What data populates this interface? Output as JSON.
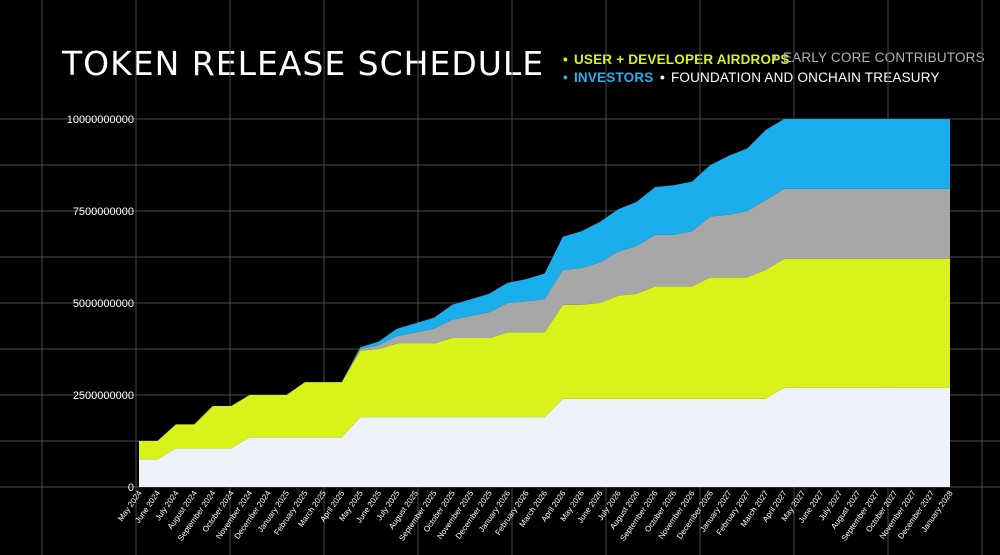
{
  "colors": {
    "background": "#000000",
    "grid": "#4a4a4a",
    "foundation": "#eef3fa",
    "user_developer_airdrops": "#d9f21a",
    "early_core_contributors": "#a7a7a7",
    "investors": "#1aaeed"
  },
  "chart_data": {
    "type": "area",
    "stacked": true,
    "title": "TOKEN RELEASE SCHEDULE",
    "xlabel": "",
    "ylabel": "",
    "ylim": [
      0,
      10000000000
    ],
    "y_ticks": [
      "0",
      "2500000000",
      "5000000000",
      "7500000000",
      "10000000000"
    ],
    "grid": true,
    "legend_position": "top-right",
    "categories": [
      "May 2024",
      "June 2024",
      "July 2024",
      "August 2024",
      "September 2024",
      "October 2024",
      "November 2024",
      "December 2024",
      "January 2025",
      "February 2025",
      "March 2025",
      "April 2025",
      "May 2025",
      "June 2025",
      "July 2025",
      "August 2025",
      "September 2025",
      "October 2025",
      "November 2025",
      "December 2025",
      "January 2026",
      "February 2026",
      "March 2026",
      "April 2026",
      "May 2026",
      "June 2026",
      "July 2026",
      "August 2026",
      "September 2026",
      "October 2026",
      "November 2026",
      "December 2026",
      "January 2027",
      "February 2027",
      "March 2027",
      "April 2027",
      "May 2027",
      "June 2027",
      "July 2027",
      "August 2027",
      "September 2027",
      "October 2027",
      "November 2027",
      "December 2027",
      "January 2028"
    ],
    "series": [
      {
        "name": "FOUNDATION AND  ONCHAIN TREASURY",
        "values": [
          750000000,
          750000000,
          1050000000,
          1050000000,
          1050000000,
          1050000000,
          1350000000,
          1350000000,
          1350000000,
          1350000000,
          1350000000,
          1350000000,
          1900000000,
          1900000000,
          1900000000,
          1900000000,
          1900000000,
          1900000000,
          1900000000,
          1900000000,
          1900000000,
          1900000000,
          1900000000,
          2400000000,
          2400000000,
          2400000000,
          2400000000,
          2400000000,
          2400000000,
          2400000000,
          2400000000,
          2400000000,
          2400000000,
          2400000000,
          2400000000,
          2700000000,
          2700000000,
          2700000000,
          2700000000,
          2700000000,
          2700000000,
          2700000000,
          2700000000,
          2700000000,
          2700000000
        ]
      },
      {
        "name": "USER + DEVELOPER AIRDROPS",
        "values": [
          500000000,
          500000000,
          650000000,
          650000000,
          1150000000,
          1150000000,
          1150000000,
          1150000000,
          1150000000,
          1500000000,
          1500000000,
          1500000000,
          1800000000,
          1850000000,
          2000000000,
          2000000000,
          2000000000,
          2150000000,
          2150000000,
          2150000000,
          2300000000,
          2300000000,
          2300000000,
          2550000000,
          2550000000,
          2600000000,
          2800000000,
          2850000000,
          3050000000,
          3050000000,
          3050000000,
          3300000000,
          3300000000,
          3300000000,
          3500000000,
          3500000000,
          3500000000,
          3500000000,
          3500000000,
          3500000000,
          3500000000,
          3500000000,
          3500000000,
          3500000000,
          3500000000
        ]
      },
      {
        "name": "EARLY CORE CONTRIBUTORS",
        "values": [
          0,
          0,
          0,
          0,
          0,
          0,
          0,
          0,
          0,
          0,
          0,
          0,
          50000000,
          100000000,
          200000000,
          300000000,
          400000000,
          500000000,
          600000000,
          700000000,
          800000000,
          850000000,
          900000000,
          950000000,
          1000000000,
          1100000000,
          1200000000,
          1300000000,
          1400000000,
          1400000000,
          1500000000,
          1650000000,
          1700000000,
          1800000000,
          1900000000,
          1900000000,
          1900000000,
          1900000000,
          1900000000,
          1900000000,
          1900000000,
          1900000000,
          1900000000,
          1900000000,
          1900000000
        ]
      },
      {
        "name": "INVESTORS",
        "values": [
          0,
          0,
          0,
          0,
          0,
          0,
          0,
          0,
          0,
          0,
          0,
          0,
          50000000,
          100000000,
          200000000,
          250000000,
          300000000,
          400000000,
          450000000,
          500000000,
          550000000,
          600000000,
          700000000,
          900000000,
          1000000000,
          1100000000,
          1150000000,
          1200000000,
          1300000000,
          1350000000,
          1350000000,
          1400000000,
          1600000000,
          1700000000,
          1900000000,
          1900000000,
          1900000000,
          1900000000,
          1900000000,
          1900000000,
          1900000000,
          1900000000,
          1900000000,
          1900000000,
          1900000000
        ]
      }
    ]
  },
  "legend": {
    "user": "USER + DEVELOPER AIRDROPS",
    "early": "EARLY CORE CONTRIBUTORS",
    "investors": "INVESTORS",
    "foundation": "FOUNDATION AND  ONCHAIN TREASURY",
    "bullet": "•"
  }
}
